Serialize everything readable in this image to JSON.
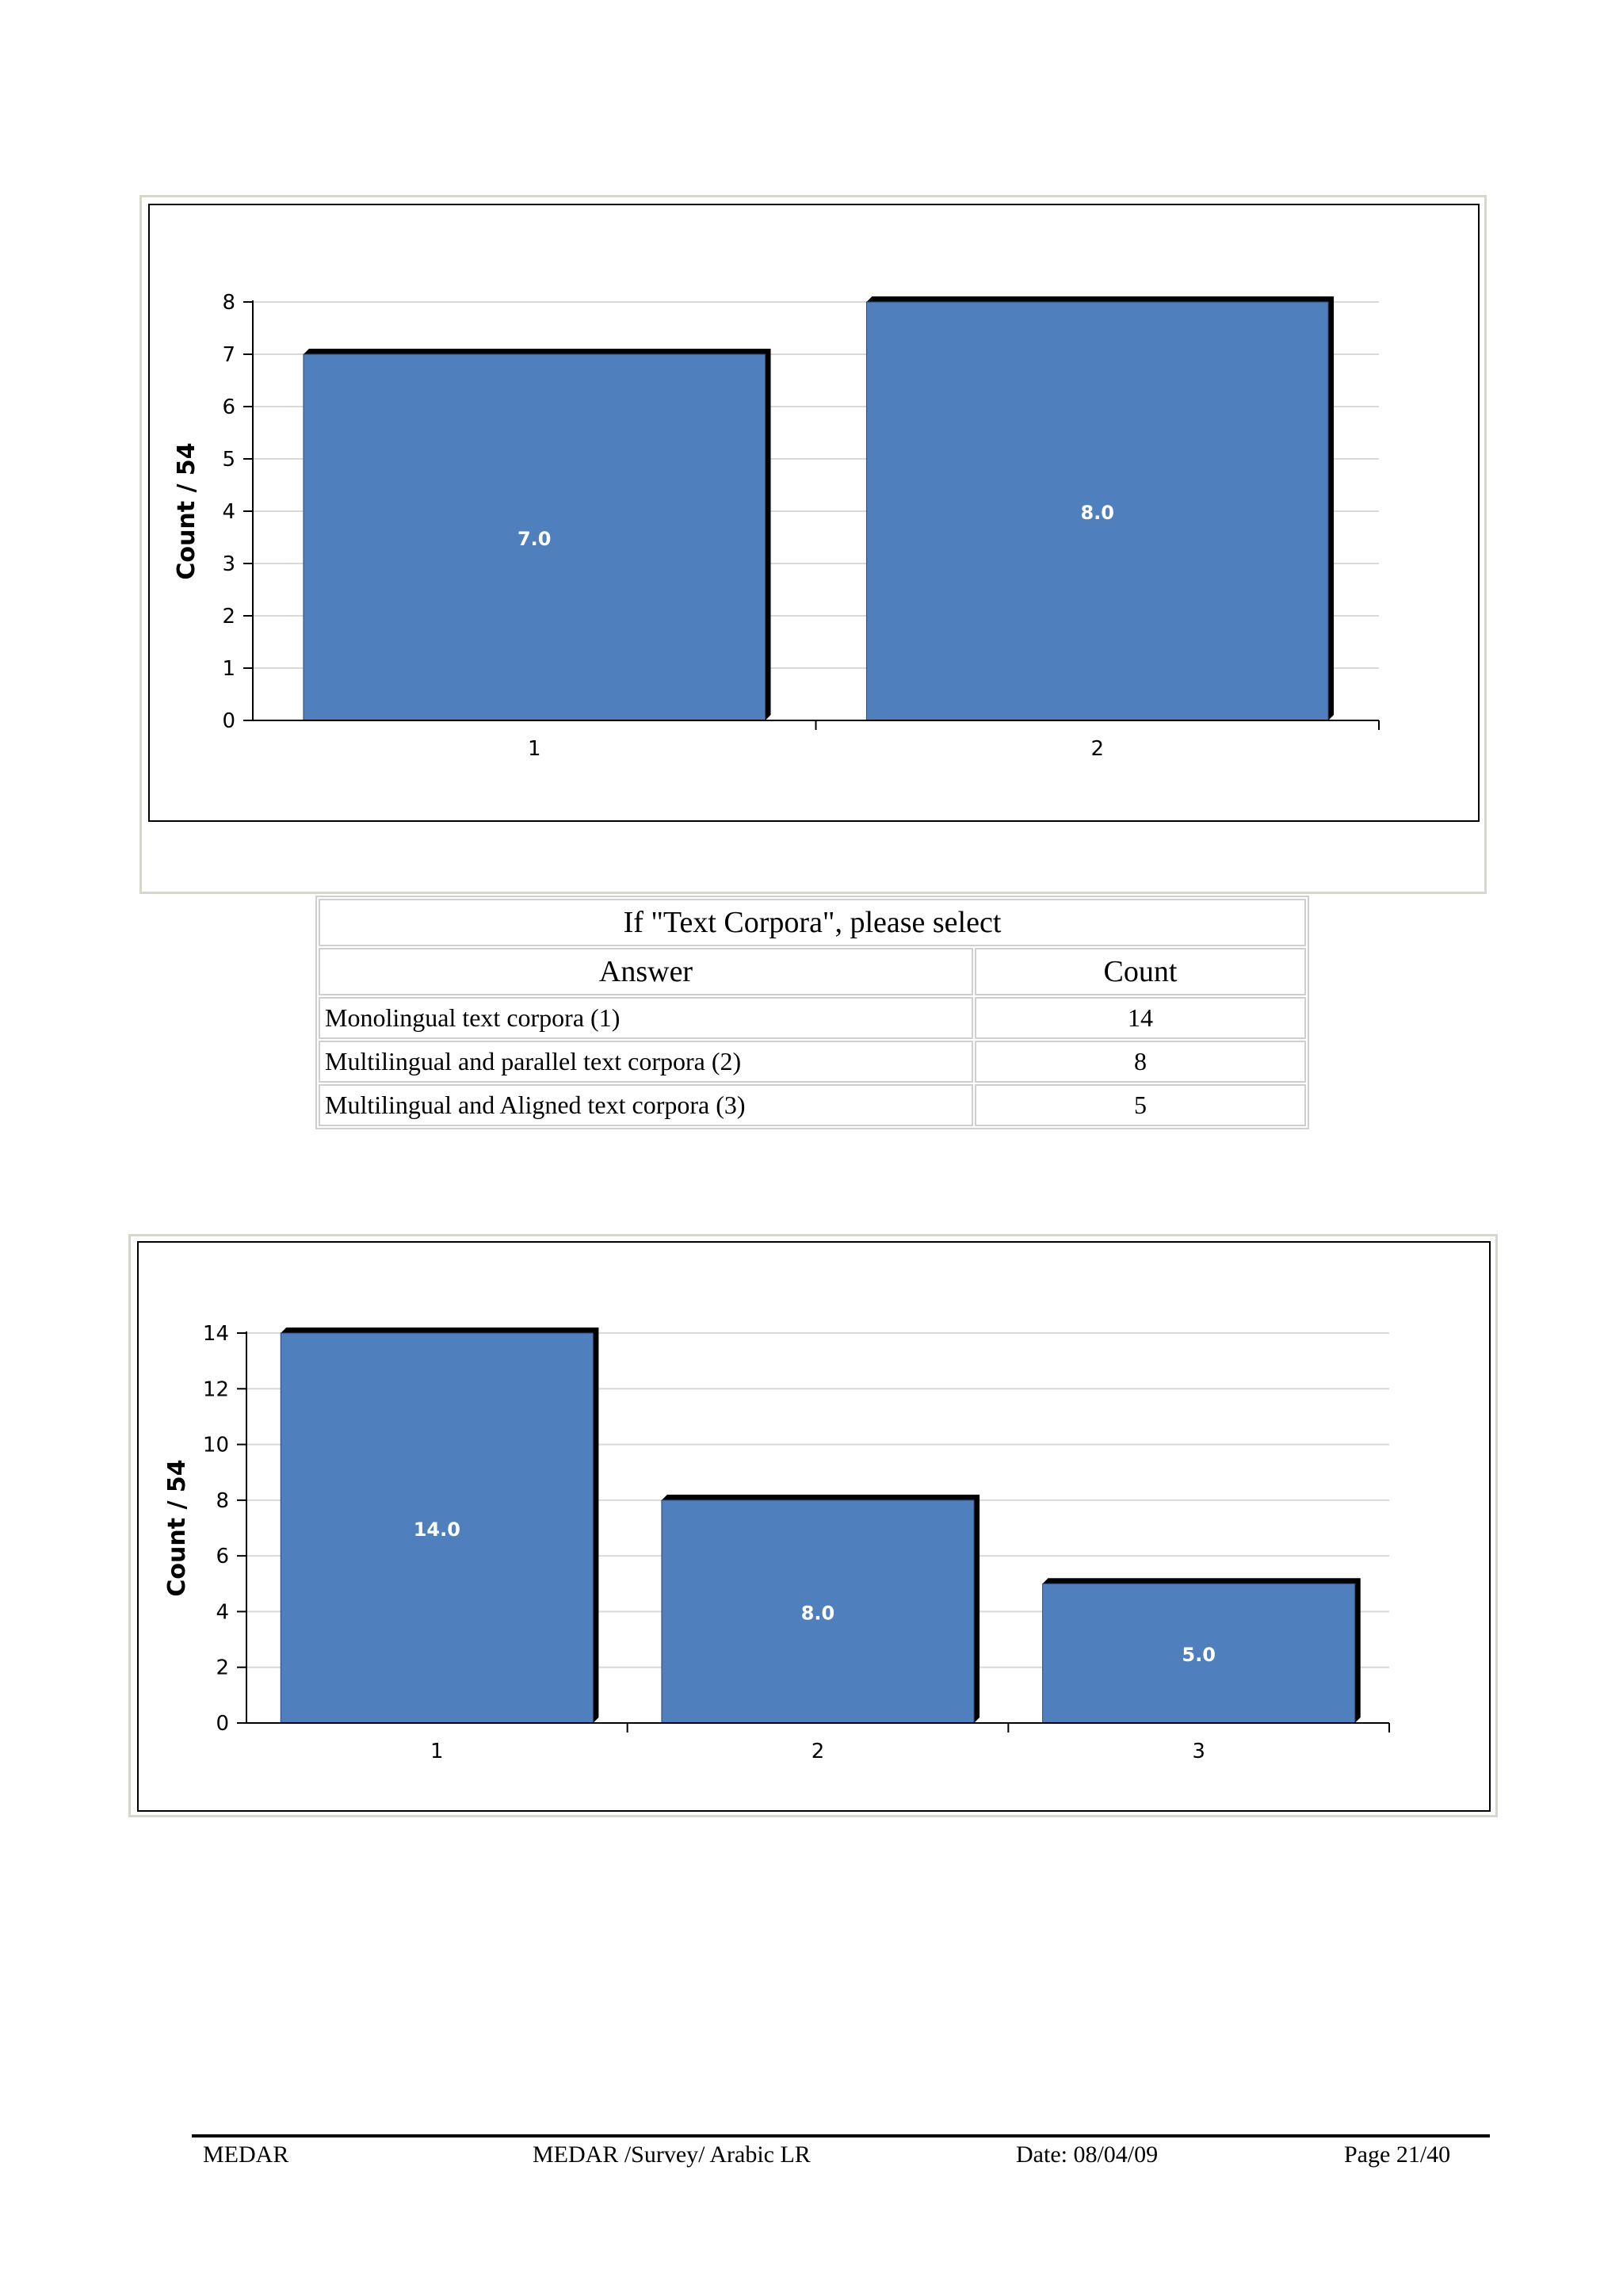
{
  "charts": [
    {
      "type": "bar",
      "categories": [
        "1",
        "2"
      ],
      "values": [
        7.0,
        8.0
      ],
      "data_labels": [
        "7.0",
        "8.0"
      ],
      "ylabel": "Count / 54",
      "ylim": [
        0,
        8
      ],
      "yticks": [
        0,
        1,
        2,
        3,
        4,
        5,
        6,
        7,
        8
      ],
      "bar_color": "#4f7fbc",
      "grid": true
    },
    {
      "type": "bar",
      "categories": [
        "1",
        "2",
        "3"
      ],
      "values": [
        14.0,
        8.0,
        5.0
      ],
      "data_labels": [
        "14.0",
        "8.0",
        "5.0"
      ],
      "ylabel": "Count / 54",
      "ylim": [
        0,
        14
      ],
      "yticks": [
        0,
        2,
        4,
        6,
        8,
        10,
        12,
        14
      ],
      "bar_color": "#4f7fbc",
      "grid": true
    }
  ],
  "chart_data": [
    {
      "type": "bar",
      "categories": [
        "1",
        "2"
      ],
      "series": [
        {
          "values": [
            7.0,
            8.0
          ]
        }
      ],
      "ylabel": "Count / 54",
      "ylim": [
        0,
        8
      ],
      "grid": true
    },
    {
      "type": "bar",
      "categories": [
        "1",
        "2",
        "3"
      ],
      "series": [
        {
          "values": [
            14.0,
            8.0,
            5.0
          ]
        }
      ],
      "ylabel": "Count / 54",
      "ylim": [
        0,
        14
      ],
      "grid": true
    }
  ],
  "table": {
    "title": "If \"Text Corpora\", please select",
    "headers": [
      "Answer",
      "Count"
    ],
    "rows": [
      {
        "answer": "Monolingual text corpora (1)",
        "count": "14"
      },
      {
        "answer": "Multilingual and parallel text corpora (2)",
        "count": "8"
      },
      {
        "answer": "Multilingual and Aligned text corpora (3)",
        "count": "5"
      }
    ]
  },
  "footer": {
    "org": "MEDAR",
    "doc": "MEDAR /Survey/ Arabic LR",
    "date": "Date:  08/04/09",
    "page": "Page 21/40"
  }
}
